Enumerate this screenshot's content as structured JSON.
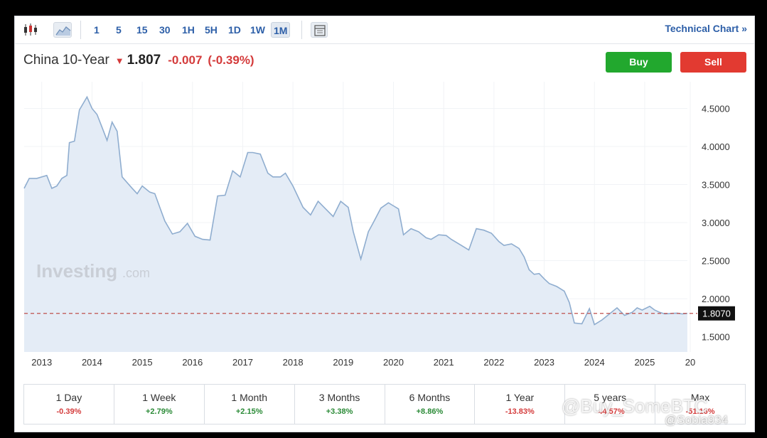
{
  "toolbar": {
    "intervals": [
      "1",
      "5",
      "15",
      "30",
      "1H",
      "5H",
      "1D",
      "1W",
      "1M"
    ],
    "active_interval": "1M",
    "technical_chart_label": "Technical Chart »"
  },
  "header": {
    "name": "China 10-Year",
    "price": "1.807",
    "change": "-0.007",
    "change_pct": "(-0.39%)"
  },
  "buttons": {
    "buy": "Buy",
    "sell": "Sell"
  },
  "watermark": {
    "logo_text": "Investing",
    "logo_suffix": ".com"
  },
  "colors": {
    "line": "#8fadcf",
    "fill": "#e4ecf6",
    "price_line": "#c0504d",
    "negative": "#d43b3b",
    "positive": "#2a8a36"
  },
  "chart_data": {
    "type": "area",
    "x_tick_labels": [
      "2013",
      "2014",
      "2015",
      "2016",
      "2017",
      "2018",
      "2019",
      "2020",
      "2021",
      "2022",
      "2023",
      "2024",
      "2025",
      "20"
    ],
    "y_tick_labels": [
      "4.5000",
      "4.0000",
      "3.5000",
      "3.0000",
      "2.5000",
      "2.0000",
      "1.5000"
    ],
    "ylim": [
      1.3,
      4.85
    ],
    "xlim": [
      2012.65,
      2025.85
    ],
    "current_value_label": "1.8070",
    "current_value": 1.807,
    "x": [
      2012.65,
      2012.75,
      2012.9,
      2013.1,
      2013.2,
      2013.3,
      2013.4,
      2013.5,
      2013.55,
      2013.65,
      2013.75,
      2013.9,
      2014.0,
      2014.1,
      2014.2,
      2014.3,
      2014.4,
      2014.5,
      2014.6,
      2014.8,
      2014.9,
      2015.0,
      2015.15,
      2015.25,
      2015.35,
      2015.45,
      2015.6,
      2015.75,
      2015.9,
      2016.05,
      2016.2,
      2016.35,
      2016.5,
      2016.65,
      2016.8,
      2016.95,
      2017.1,
      2017.2,
      2017.35,
      2017.5,
      2017.6,
      2017.75,
      2017.85,
      2018.0,
      2018.2,
      2018.35,
      2018.5,
      2018.65,
      2018.8,
      2018.95,
      2019.1,
      2019.2,
      2019.35,
      2019.5,
      2019.6,
      2019.75,
      2019.9,
      2020.0,
      2020.1,
      2020.2,
      2020.35,
      2020.5,
      2020.65,
      2020.75,
      2020.9,
      2021.05,
      2021.15,
      2021.35,
      2021.5,
      2021.65,
      2021.8,
      2021.95,
      2022.1,
      2022.2,
      2022.35,
      2022.5,
      2022.6,
      2022.7,
      2022.8,
      2022.9,
      2023.0,
      2023.1,
      2023.25,
      2023.4,
      2023.5,
      2023.6,
      2023.75,
      2023.9,
      2024.0,
      2024.15,
      2024.3,
      2024.45,
      2024.6,
      2024.75,
      2024.85,
      2024.95,
      2025.1,
      2025.2,
      2025.3,
      2025.4,
      2025.55,
      2025.65,
      2025.75,
      2025.85
    ],
    "values": [
      3.45,
      3.58,
      3.58,
      3.62,
      3.45,
      3.48,
      3.58,
      3.62,
      4.05,
      4.07,
      4.48,
      4.65,
      4.5,
      4.42,
      4.25,
      4.08,
      4.32,
      4.2,
      3.6,
      3.45,
      3.38,
      3.48,
      3.4,
      3.38,
      3.2,
      3.02,
      2.85,
      2.88,
      2.99,
      2.82,
      2.78,
      2.77,
      3.35,
      3.36,
      3.68,
      3.6,
      3.92,
      3.92,
      3.9,
      3.65,
      3.6,
      3.6,
      3.65,
      3.48,
      3.2,
      3.1,
      3.28,
      3.18,
      3.08,
      3.28,
      3.2,
      2.88,
      2.52,
      2.88,
      3.0,
      3.19,
      3.26,
      3.22,
      3.18,
      2.84,
      2.92,
      2.88,
      2.8,
      2.78,
      2.84,
      2.83,
      2.78,
      2.7,
      2.64,
      2.92,
      2.9,
      2.86,
      2.75,
      2.7,
      2.72,
      2.66,
      2.55,
      2.38,
      2.32,
      2.33,
      2.26,
      2.2,
      2.16,
      2.1,
      1.95,
      1.68,
      1.67,
      1.87,
      1.66,
      1.72,
      1.8,
      1.88,
      1.78,
      1.82,
      1.88,
      1.85,
      1.9,
      1.85,
      1.82,
      1.8,
      1.807,
      1.81,
      1.8,
      1.807
    ]
  },
  "performance": [
    {
      "label": "1 Day",
      "value": "-0.39%",
      "sign": "neg"
    },
    {
      "label": "1 Week",
      "value": "+2.79%",
      "sign": "pos"
    },
    {
      "label": "1 Month",
      "value": "+2.15%",
      "sign": "pos"
    },
    {
      "label": "3 Months",
      "value": "+3.38%",
      "sign": "pos"
    },
    {
      "label": "6 Months",
      "value": "+8.86%",
      "sign": "pos"
    },
    {
      "label": "1 Year",
      "value": "-13.83%",
      "sign": "neg"
    },
    {
      "label": "5 years",
      "value": "-44.57%",
      "sign": "neg"
    },
    {
      "label": "Max",
      "value": "-51.16%",
      "sign": "neg"
    }
  ],
  "overlay": {
    "buy_text": "@Buy_SomeBTC",
    "user_text": "@Sobia934"
  }
}
